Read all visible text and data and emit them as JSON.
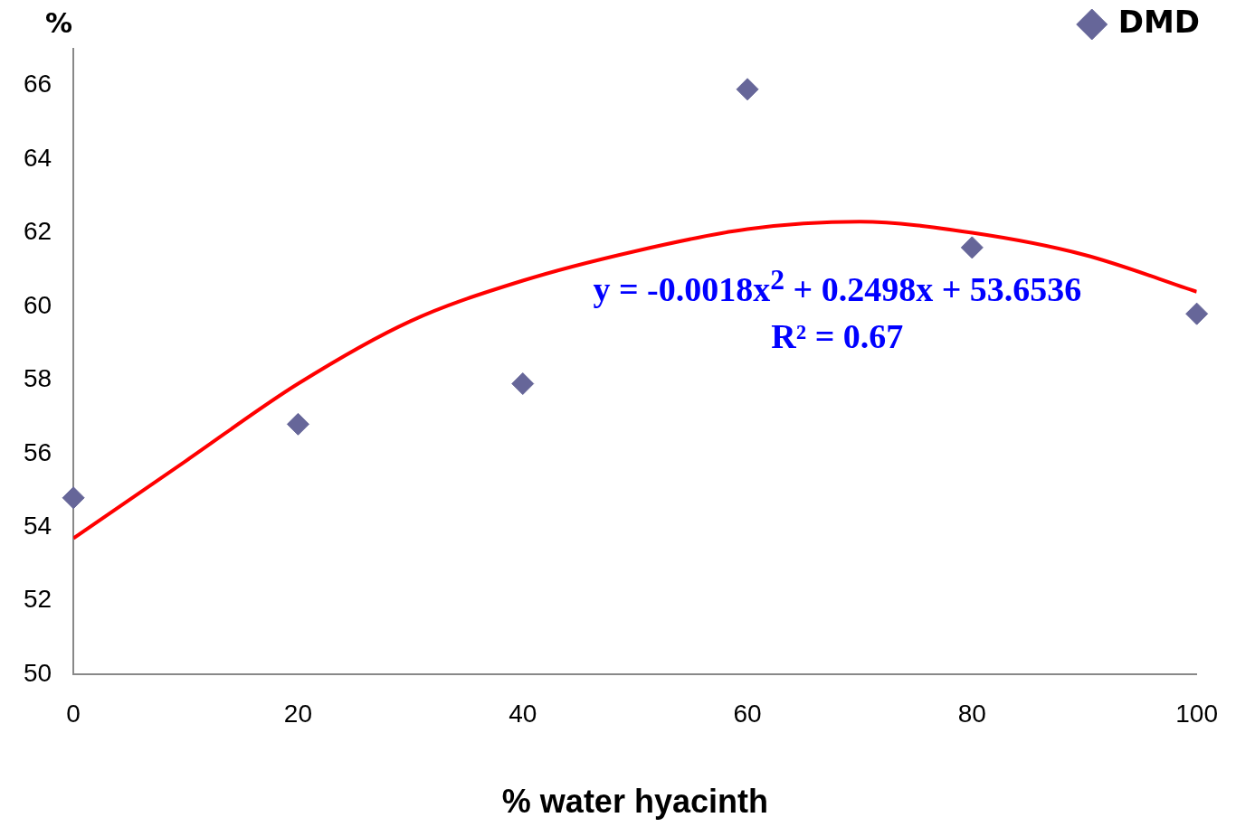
{
  "chart_data": {
    "type": "scatter",
    "xlabel": "% water hyacinth",
    "ylabel": "%",
    "x": [
      0,
      20,
      40,
      60,
      80,
      100
    ],
    "series": [
      {
        "name": "DMD",
        "color": "#666699",
        "marker": "diamond",
        "values": [
          54.8,
          56.8,
          57.9,
          65.9,
          61.6,
          59.8
        ]
      },
      {
        "type": "line",
        "color": "#ff0000",
        "marker": "none",
        "x": [
          0,
          10,
          20,
          30,
          40,
          50,
          60,
          70,
          80,
          90,
          100
        ],
        "values": [
          53.7,
          55.8,
          57.9,
          59.6,
          60.7,
          61.5,
          62.1,
          62.3,
          62.0,
          61.4,
          60.4
        ]
      }
    ],
    "xlim": [
      0,
      100
    ],
    "xticks": [
      0,
      20,
      40,
      60,
      80,
      100
    ],
    "ylim": [
      50,
      67
    ],
    "yticks": [
      50,
      52,
      54,
      56,
      58,
      60,
      62,
      64,
      66
    ],
    "grid": false,
    "legend": "top right",
    "annotations": [
      "y = -0.0018x$^{2}$ + 0.2498x + 53.6536",
      "R² = 0.67"
    ]
  }
}
